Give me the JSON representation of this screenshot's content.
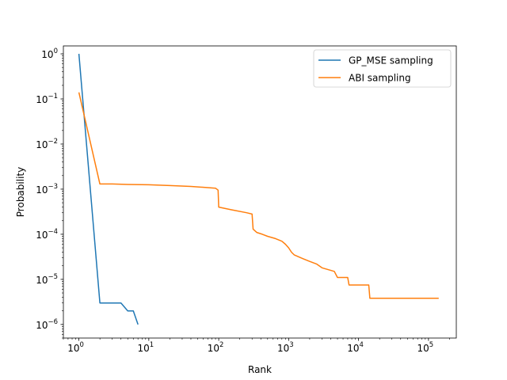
{
  "chart_data": {
    "type": "line",
    "xscale": "log",
    "yscale": "log",
    "xlabel": "Rank",
    "ylabel": "Probability",
    "xlim": [
      0.6,
      250000
    ],
    "ylim": [
      5e-07,
      1.5
    ],
    "grid": false,
    "legend_position": "top-right",
    "x_ticks": [
      {
        "value": 1,
        "base": "10",
        "exp": "0"
      },
      {
        "value": 10,
        "base": "10",
        "exp": "1"
      },
      {
        "value": 100,
        "base": "10",
        "exp": "2"
      },
      {
        "value": 1000,
        "base": "10",
        "exp": "3"
      },
      {
        "value": 10000,
        "base": "10",
        "exp": "4"
      },
      {
        "value": 100000,
        "base": "10",
        "exp": "5"
      }
    ],
    "y_ticks": [
      {
        "value": 1e-06,
        "base": "10",
        "exp": "−6"
      },
      {
        "value": 1e-05,
        "base": "10",
        "exp": "−5"
      },
      {
        "value": 0.0001,
        "base": "10",
        "exp": "−4"
      },
      {
        "value": 0.001,
        "base": "10",
        "exp": "−3"
      },
      {
        "value": 0.01,
        "base": "10",
        "exp": "−2"
      },
      {
        "value": 0.1,
        "base": "10",
        "exp": "−1"
      },
      {
        "value": 1,
        "base": "10",
        "exp": "0"
      }
    ],
    "series": [
      {
        "name": "GP_MSE sampling",
        "color": "#1f77b4",
        "points": [
          [
            1,
            1.0
          ],
          [
            2,
            3e-06
          ],
          [
            3,
            3e-06
          ],
          [
            4,
            3e-06
          ],
          [
            5,
            2e-06
          ],
          [
            6,
            2e-06
          ],
          [
            7,
            1e-06
          ]
        ]
      },
      {
        "name": "ABI sampling",
        "color": "#ff7f0e",
        "points": [
          [
            1,
            0.14
          ],
          [
            2,
            0.0013
          ],
          [
            3,
            0.0013
          ],
          [
            5,
            0.00127
          ],
          [
            10,
            0.00125
          ],
          [
            20,
            0.0012
          ],
          [
            40,
            0.00115
          ],
          [
            70,
            0.00108
          ],
          [
            90,
            0.00105
          ],
          [
            98,
            0.00095
          ],
          [
            100,
            0.0004
          ],
          [
            150,
            0.00035
          ],
          [
            250,
            0.0003
          ],
          [
            300,
            0.00028
          ],
          [
            310,
            0.00013
          ],
          [
            350,
            0.00011
          ],
          [
            420,
            0.0001
          ],
          [
            500,
            9e-05
          ],
          [
            650,
            8e-05
          ],
          [
            800,
            7e-05
          ],
          [
            900,
            6e-05
          ],
          [
            1000,
            5e-05
          ],
          [
            1100,
            4e-05
          ],
          [
            1200,
            3.5e-05
          ],
          [
            1500,
            3e-05
          ],
          [
            2000,
            2.5e-05
          ],
          [
            2500,
            2.2e-05
          ],
          [
            3000,
            1.8e-05
          ],
          [
            4500,
            1.5e-05
          ],
          [
            5000,
            1.1e-05
          ],
          [
            7000,
            1.1e-05
          ],
          [
            7300,
            7.5e-06
          ],
          [
            14000,
            7.5e-06
          ],
          [
            14500,
            3.8e-06
          ],
          [
            140000,
            3.8e-06
          ]
        ]
      }
    ]
  }
}
